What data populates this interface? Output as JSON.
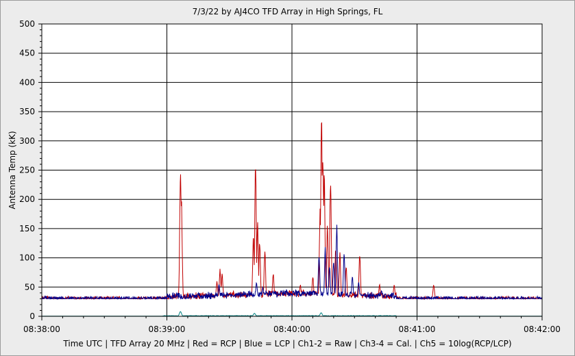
{
  "chart_data": {
    "type": "line",
    "title": "7/3/22  by  AJ4CO TFD Array  in  High Springs, FL",
    "xlabel": "Time UTC | TFD Array 20 MHz | Red = RCP | Blue = LCP | Ch1-2 = Raw | Ch3-4 = Cal. | Ch5 = 10log(RCP/LCP)",
    "ylabel": "Antenna Temp (kK)",
    "ylim": [
      0,
      500
    ],
    "yticks": [
      "0",
      "50",
      "100",
      "150",
      "200",
      "250",
      "300",
      "350",
      "400",
      "450",
      "500"
    ],
    "xlim_seconds": [
      0,
      240
    ],
    "xticks": [
      "08:38:00",
      "08:39:00",
      "08:40:00",
      "08:41:00",
      "08:42:00"
    ],
    "grid": true,
    "series": [
      {
        "name": "RCP",
        "color": "#c00000",
        "baseline": 30,
        "peaks": [
          {
            "t": 66.5,
            "value": 260
          },
          {
            "t": 67.0,
            "value": 200
          },
          {
            "t": 84.0,
            "value": 60
          },
          {
            "t": 85.5,
            "value": 82
          },
          {
            "t": 86.5,
            "value": 75
          },
          {
            "t": 101.5,
            "value": 140
          },
          {
            "t": 102.5,
            "value": 283
          },
          {
            "t": 103.5,
            "value": 165
          },
          {
            "t": 104.5,
            "value": 130
          },
          {
            "t": 107.0,
            "value": 115
          },
          {
            "t": 111.0,
            "value": 75
          },
          {
            "t": 124.0,
            "value": 55
          },
          {
            "t": 130.0,
            "value": 70
          },
          {
            "t": 133.5,
            "value": 190
          },
          {
            "t": 134.2,
            "value": 360
          },
          {
            "t": 134.8,
            "value": 300
          },
          {
            "t": 135.5,
            "value": 250
          },
          {
            "t": 137.0,
            "value": 160
          },
          {
            "t": 138.5,
            "value": 242
          },
          {
            "t": 141.0,
            "value": 125
          },
          {
            "t": 143.0,
            "value": 110
          },
          {
            "t": 146.0,
            "value": 90
          },
          {
            "t": 152.5,
            "value": 113
          },
          {
            "t": 162.0,
            "value": 55
          },
          {
            "t": 169.0,
            "value": 55
          },
          {
            "t": 188.0,
            "value": 55
          }
        ]
      },
      {
        "name": "LCP",
        "color": "#00008b",
        "baseline": 30,
        "peaks": [
          {
            "t": 85.0,
            "value": 55
          },
          {
            "t": 103.0,
            "value": 60
          },
          {
            "t": 106.0,
            "value": 50
          },
          {
            "t": 133.0,
            "value": 110
          },
          {
            "t": 136.0,
            "value": 120
          },
          {
            "t": 138.0,
            "value": 90
          },
          {
            "t": 140.0,
            "value": 100
          },
          {
            "t": 141.5,
            "value": 160
          },
          {
            "t": 145.0,
            "value": 110
          },
          {
            "t": 149.0,
            "value": 70
          },
          {
            "t": 152.0,
            "value": 60
          },
          {
            "t": 163.0,
            "value": 45
          }
        ]
      },
      {
        "name": "Ch5",
        "color": "#008080",
        "baseline": 0,
        "peaks": [
          {
            "t": 66.5,
            "value": 8
          },
          {
            "t": 102.0,
            "value": 5
          },
          {
            "t": 134.0,
            "value": 6
          }
        ]
      }
    ]
  }
}
